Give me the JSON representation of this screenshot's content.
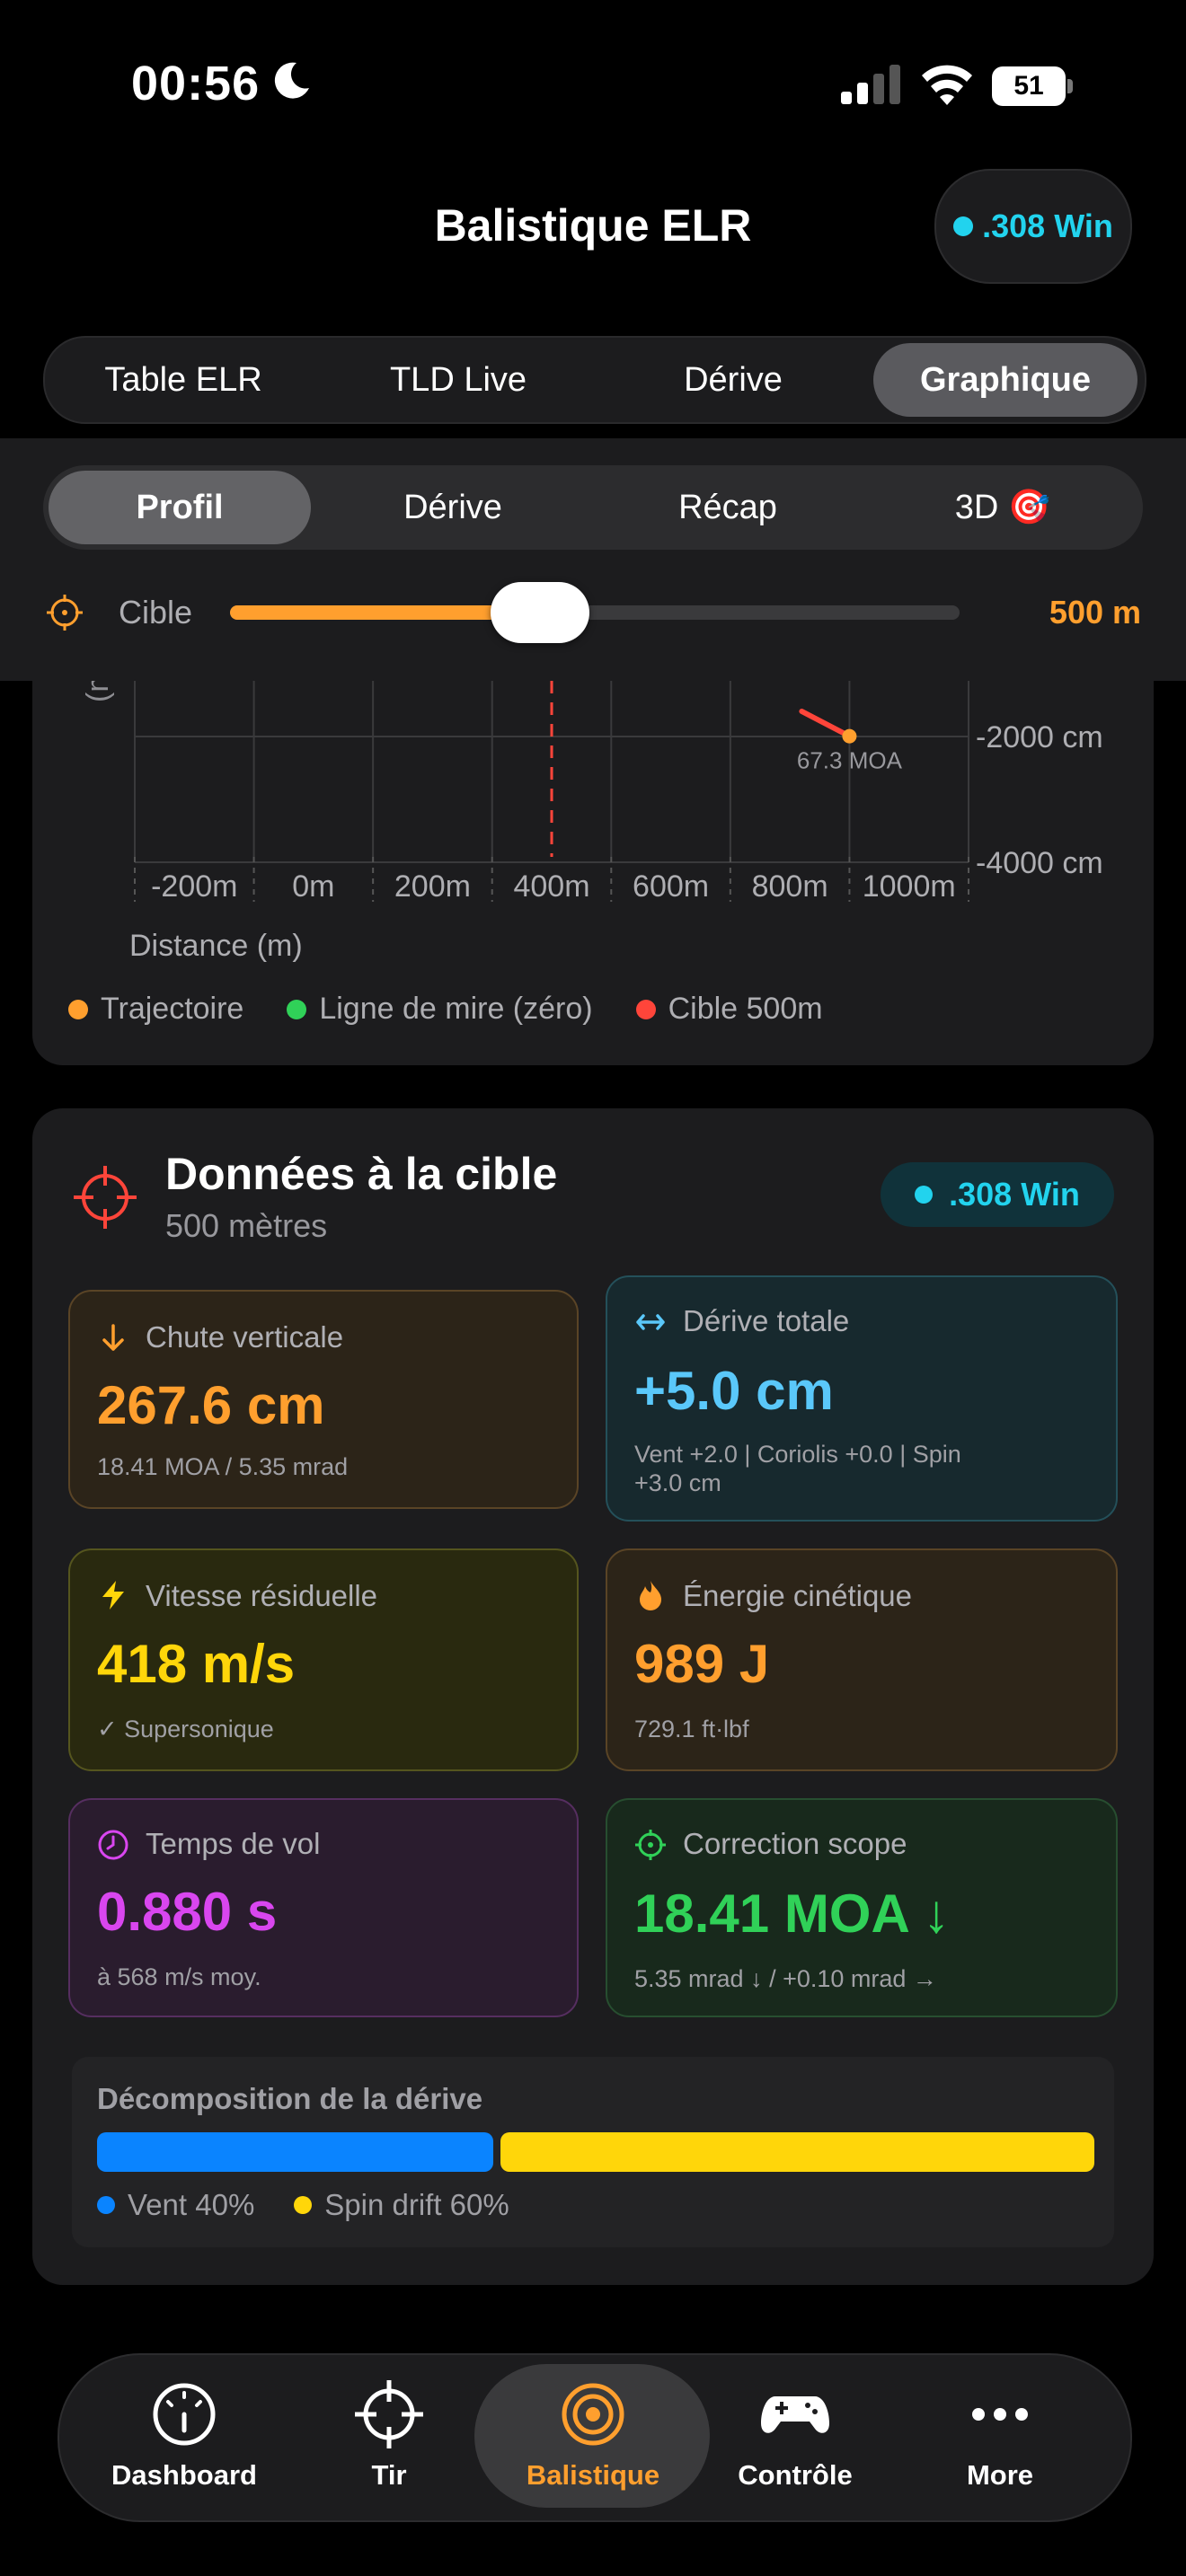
{
  "status_bar": {
    "time": "00:56",
    "battery": "51"
  },
  "header": {
    "title": "Balistique ELR",
    "caliber": ".308 Win"
  },
  "main_tabs": [
    {
      "label": "Table ELR",
      "active": false
    },
    {
      "label": "TLD Live",
      "active": false
    },
    {
      "label": "Dérive",
      "active": false
    },
    {
      "label": "Graphique",
      "active": true
    }
  ],
  "sub_tabs": [
    {
      "label": "Profil",
      "active": true
    },
    {
      "label": "Dérive",
      "active": false
    },
    {
      "label": "Récap",
      "active": false
    },
    {
      "label": "3D 🎯",
      "active": false
    }
  ],
  "target_slider": {
    "label": "Cible",
    "value_text": "500 m",
    "fraction": 0.5
  },
  "chart": {
    "ylabel_partial": "(m",
    "y_ticks": [
      "-2000 cm",
      "-4000 cm"
    ],
    "x_ticks": [
      "-200m",
      "0m",
      "200m",
      "400m",
      "600m",
      "800m",
      "1000m"
    ],
    "xlabel": "Distance (m)",
    "annotation": "67.3 MOA",
    "legend": [
      {
        "label": "Trajectoire",
        "color": "#ff9f2e"
      },
      {
        "label": "Ligne de mire (zéro)",
        "color": "#30d158"
      },
      {
        "label": "Cible 500m",
        "color": "#ff453a"
      }
    ]
  },
  "chart_data": {
    "type": "line",
    "title": "",
    "xlabel": "Distance (m)",
    "ylabel": "(m",
    "xlim": [
      -200,
      1200
    ],
    "ylim": [
      -4000,
      -1200
    ],
    "series": [
      {
        "name": "Trajectoire",
        "x": [
          920,
          1000
        ],
        "y": [
          -1600,
          -1995
        ]
      }
    ],
    "target_line_x": 500,
    "annotation": {
      "text": "67.3 MOA",
      "x": 1000,
      "y": -1995
    },
    "grid": true
  },
  "target_data": {
    "title": "Données à la cible",
    "subtitle": "500 mètres",
    "caliber": ".308 Win",
    "tiles": {
      "drop": {
        "label": "Chute verticale",
        "value": "267.6 cm",
        "sub": "18.41 MOA / 5.35 mrad"
      },
      "drift": {
        "label": "Dérive totale",
        "value": "+5.0 cm",
        "sub1": "Vent +2.0 | Coriolis +0.0 | Spin",
        "sub2": "+3.0 cm"
      },
      "velocity": {
        "label": "Vitesse résiduelle",
        "value": "418 m/s",
        "sub": "✓ Supersonique"
      },
      "energy": {
        "label": "Énergie cinétique",
        "value": "989 J",
        "sub": "729.1 ft·lbf"
      },
      "time": {
        "label": "Temps de vol",
        "value": "0.880 s",
        "sub": "à 568 m/s moy."
      },
      "scope": {
        "label": "Correction scope",
        "value": "18.41 MOA ↓",
        "sub": "5.35 mrad ↓ / +0.10 mrad →"
      }
    },
    "decomposition": {
      "title": "Décomposition de la dérive",
      "wind_label": "Vent 40%",
      "spin_label": "Spin drift 60%",
      "wind_fraction": 0.4,
      "spin_fraction": 0.6
    }
  },
  "tab_bar": [
    {
      "label": "Dashboard",
      "icon": "gauge-icon",
      "active": false
    },
    {
      "label": "Tir",
      "icon": "crosshair-icon",
      "active": false
    },
    {
      "label": "Balistique",
      "icon": "target-icon",
      "active": true
    },
    {
      "label": "Contrôle",
      "icon": "gamepad-icon",
      "active": false
    },
    {
      "label": "More",
      "icon": "more-icon",
      "active": false
    }
  ]
}
